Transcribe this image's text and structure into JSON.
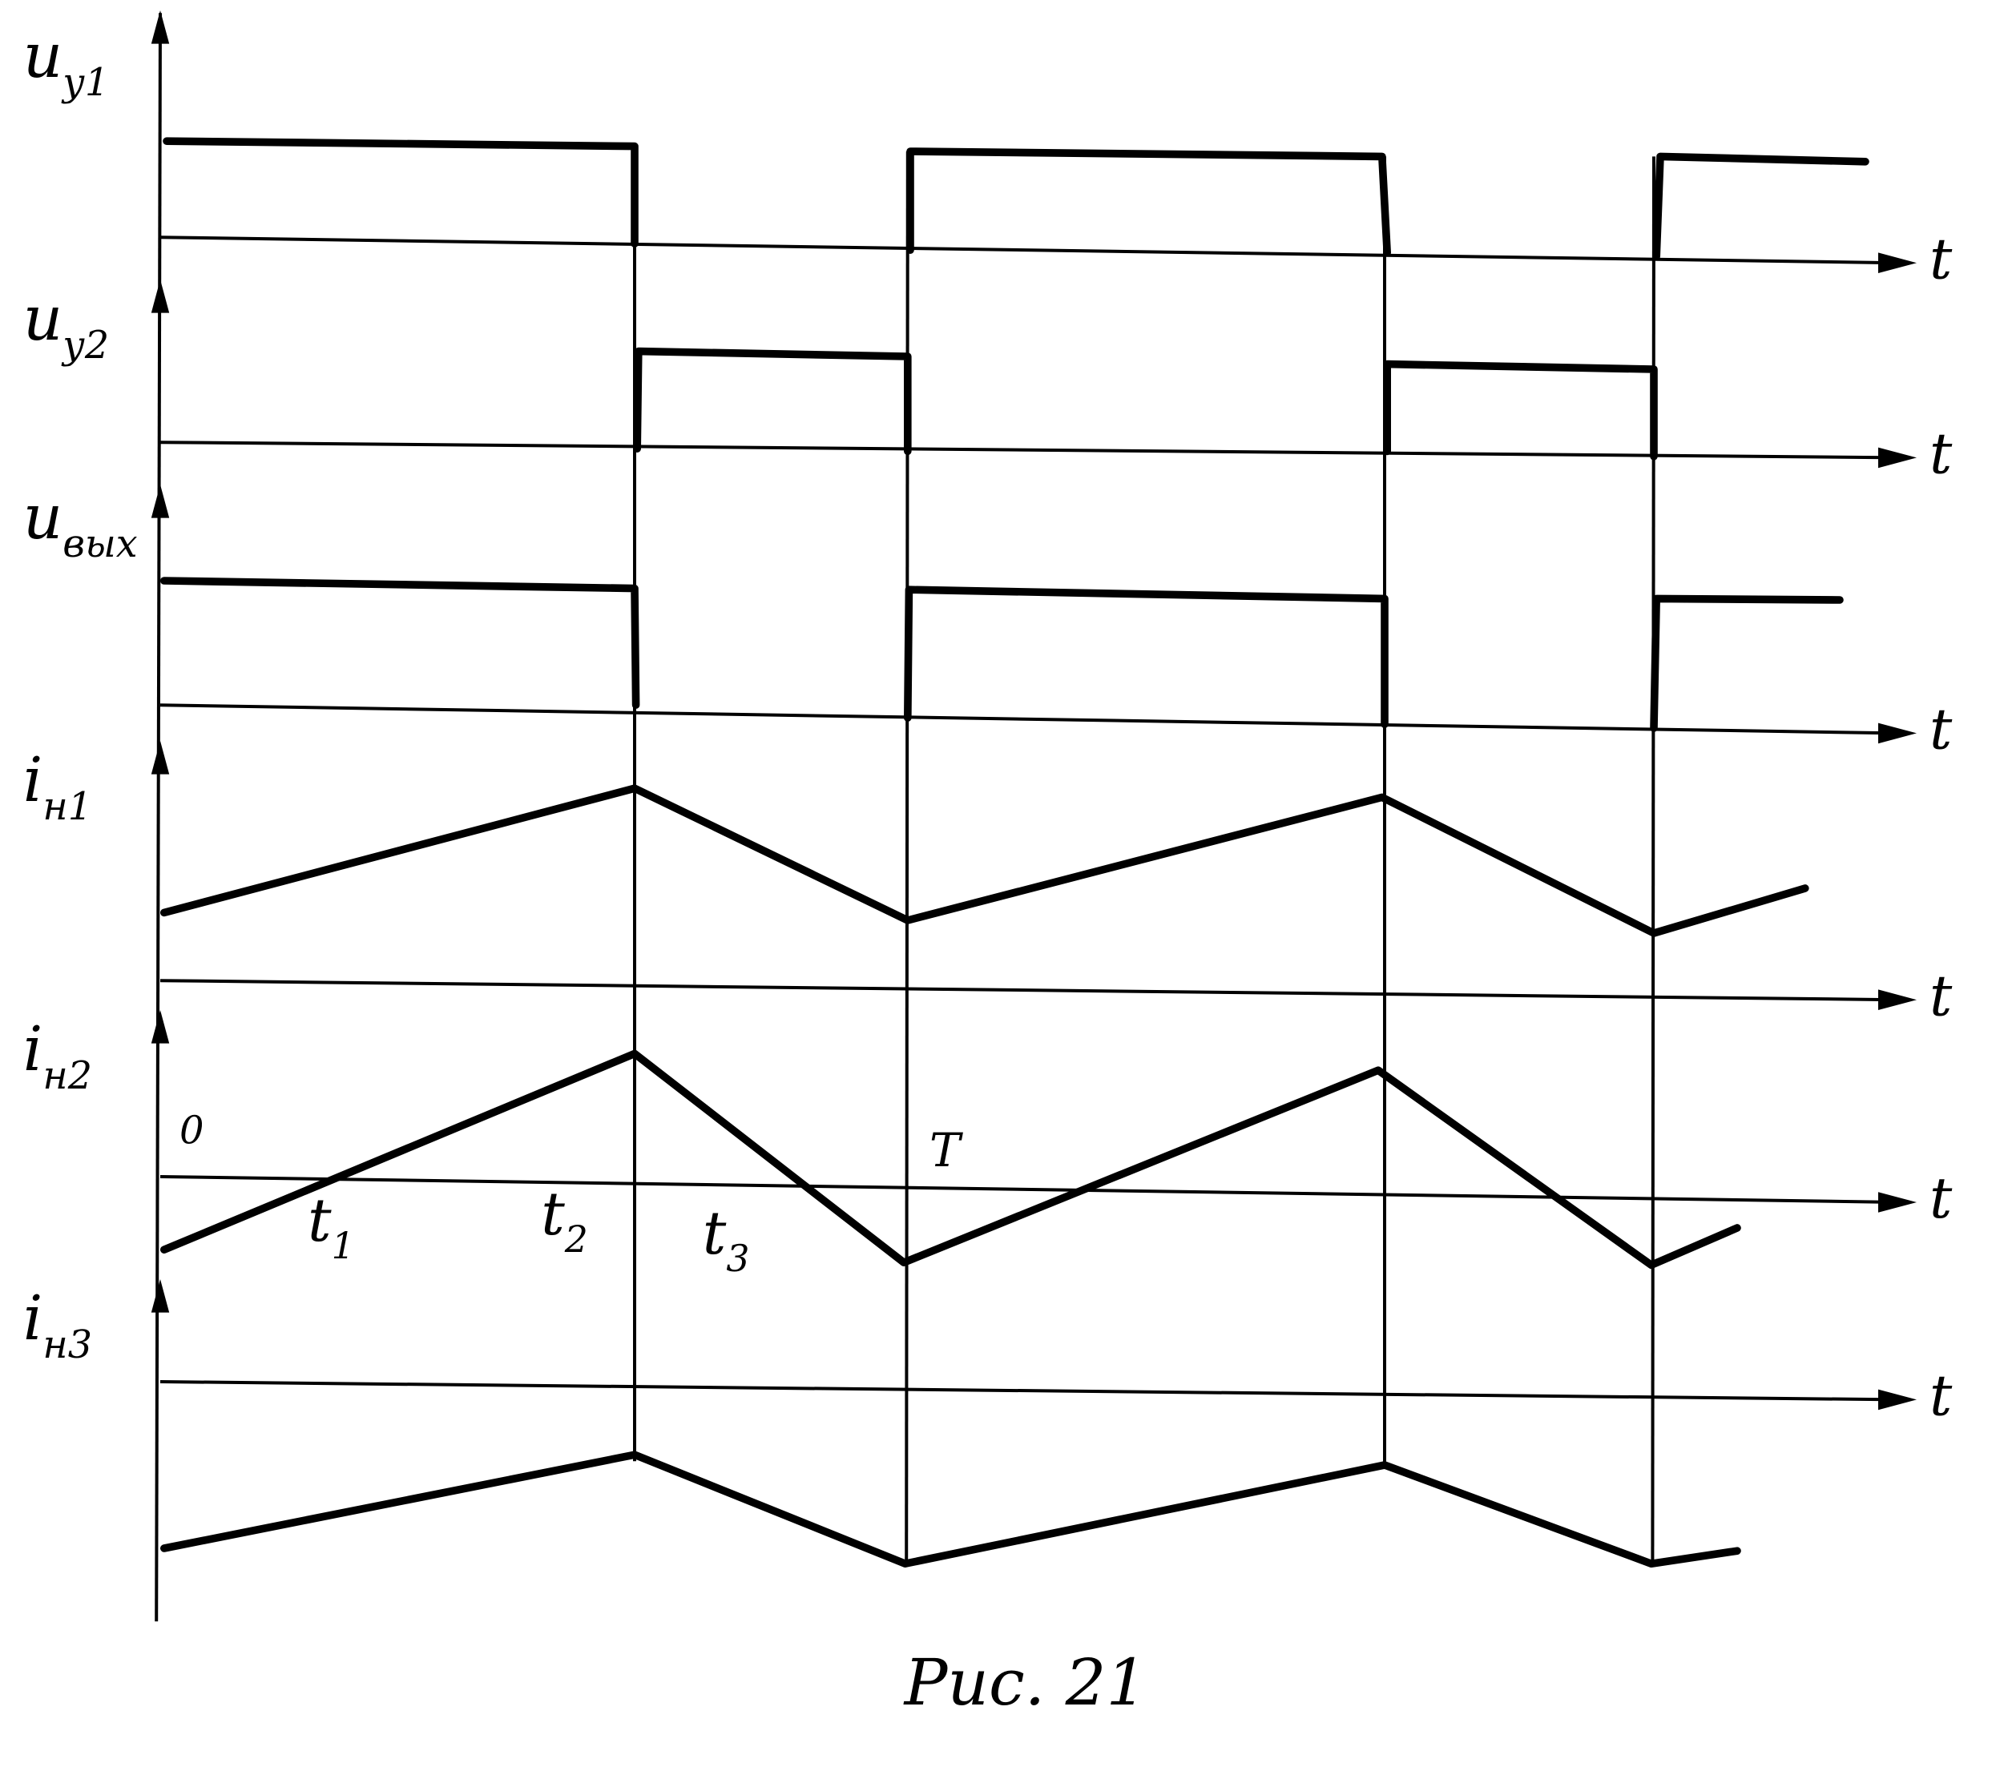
{
  "signals": [
    {
      "symbol": "u",
      "subscript": "у1",
      "axis_label": "t"
    },
    {
      "symbol": "u",
      "subscript": "у2",
      "axis_label": "t"
    },
    {
      "symbol": "u",
      "subscript": "вых",
      "axis_label": "t"
    },
    {
      "symbol": "i",
      "subscript": "н1",
      "axis_label": "t"
    },
    {
      "symbol": "i",
      "subscript": "н2",
      "axis_label": "t"
    },
    {
      "symbol": "i",
      "subscript": "н3",
      "axis_label": "t"
    }
  ],
  "time_marks": {
    "origin": "0",
    "period": "T",
    "instants": [
      {
        "symbol": "t",
        "subscript": "1"
      },
      {
        "symbol": "t",
        "subscript": "2"
      },
      {
        "symbol": "t",
        "subscript": "3"
      }
    ]
  },
  "caption": "Рис. 21"
}
